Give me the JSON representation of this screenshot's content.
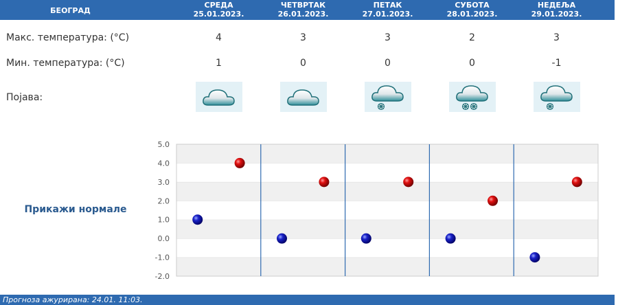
{
  "header": {
    "city": "БЕОГРАД",
    "days": [
      {
        "name": "СРЕДА",
        "date": "25.01.2023."
      },
      {
        "name": "ЧЕТВРТАК",
        "date": "26.01.2023."
      },
      {
        "name": "ПЕТАК",
        "date": "27.01.2023."
      },
      {
        "name": "СУБОТА",
        "date": "28.01.2023."
      },
      {
        "name": "НЕДЕЉА",
        "date": "29.01.2023."
      }
    ]
  },
  "rows": {
    "max_label": "Макс. температура: (°C)",
    "min_label": "Мин. температура: (°C)",
    "phenomenon_label": "Појава:",
    "max": [
      "4",
      "3",
      "3",
      "2",
      "3"
    ],
    "min": [
      "1",
      "0",
      "0",
      "0",
      "-1"
    ],
    "icons": [
      "cloud-icon",
      "cloud-icon",
      "cloud-snow-icon",
      "cloud-snow-heavy-icon",
      "cloud-snow-icon"
    ]
  },
  "show_normals_label": "Прикажи нормале",
  "chart_data": {
    "type": "scatter",
    "categories": [
      "25.01.2023.",
      "26.01.2023.",
      "27.01.2023.",
      "28.01.2023.",
      "29.01.2023."
    ],
    "series": [
      {
        "values": [
          4,
          3,
          3,
          2,
          3
        ],
        "color": "#cc0000"
      },
      {
        "values": [
          1,
          0,
          0,
          0,
          -1
        ],
        "color": "#1a1aa6"
      }
    ],
    "ylim": [
      -2,
      5
    ],
    "yticks": [
      "5.0",
      "4.0",
      "3.0",
      "2.0",
      "1.0",
      "0.0",
      "-1.0",
      "-2.0"
    ],
    "grid": true
  },
  "footer": {
    "updated": "Прогноза ажурирана:  24.01.  11:03."
  },
  "colors": {
    "header_bg": "#2e6ab0",
    "max_marker": "#cc0000",
    "min_marker": "#1a1aa6"
  }
}
